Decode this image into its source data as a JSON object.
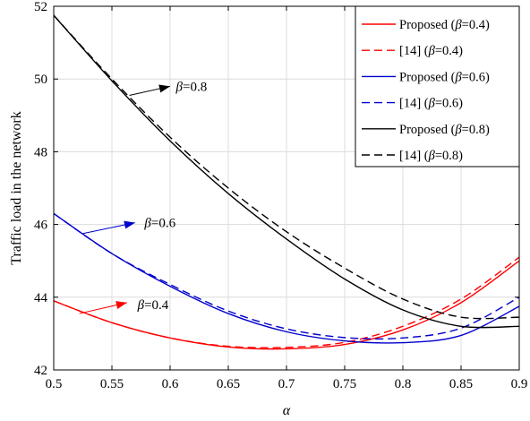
{
  "chart_data": {
    "type": "line",
    "title": "",
    "xlabel": "α",
    "ylabel": "Traffic load in the network",
    "xlim": [
      0.5,
      0.9
    ],
    "ylim": [
      42,
      52
    ],
    "grid": true,
    "legend_position": "top-right",
    "x_ticks": [
      "0.5",
      "0.55",
      "0.6",
      "0.65",
      "0.7",
      "0.75",
      "0.8",
      "0.85",
      "0.9"
    ],
    "y_ticks": [
      "42",
      "44",
      "46",
      "48",
      "50",
      "52"
    ],
    "x": [
      0.5,
      0.55,
      0.6,
      0.65,
      0.7,
      0.75,
      0.8,
      0.85,
      0.9
    ],
    "series": [
      {
        "name": "Proposed (β=0.4)",
        "color": "#ff0000",
        "dash": "solid",
        "values": [
          43.9,
          43.3,
          42.88,
          42.63,
          42.58,
          42.7,
          43.1,
          43.85,
          45.0
        ]
      },
      {
        "name": "[14] (β=0.4)",
        "color": "#ff0000",
        "dash": "dashed",
        "values": [
          43.9,
          43.3,
          42.88,
          42.65,
          42.62,
          42.76,
          43.2,
          43.95,
          45.1
        ]
      },
      {
        "name": "Proposed (β=0.6)",
        "color": "#0000cc",
        "dash": "solid",
        "values": [
          46.3,
          45.2,
          44.3,
          43.55,
          43.05,
          42.8,
          42.75,
          42.95,
          43.75
        ]
      },
      {
        "name": "[14] (β=0.6)",
        "color": "#0000cc",
        "dash": "dashed",
        "values": [
          46.3,
          45.2,
          44.35,
          43.62,
          43.13,
          42.89,
          42.88,
          43.15,
          44.0
        ]
      },
      {
        "name": "Proposed (β=0.8)",
        "color": "#000000",
        "dash": "solid",
        "values": [
          51.75,
          49.95,
          48.3,
          46.85,
          45.6,
          44.5,
          43.65,
          43.2,
          43.2
        ]
      },
      {
        "name": "[14] (β=0.8)",
        "color": "#000000",
        "dash": "dashed",
        "values": [
          51.75,
          50.0,
          48.4,
          47.0,
          45.8,
          44.8,
          43.95,
          43.45,
          43.45
        ]
      }
    ],
    "annotations": [
      {
        "label_prefix": "β",
        "label_value": "=0.8",
        "color": "#000000",
        "x_from": 0.565,
        "y_from": 49.55,
        "x_to": 0.6,
        "y_to": 49.8,
        "x_text": 0.605,
        "y_text": 49.8
      },
      {
        "label_prefix": "β",
        "label_value": "=0.6",
        "color": "#0000cc",
        "x_from": 0.525,
        "y_from": 45.75,
        "x_to": 0.57,
        "y_to": 46.05,
        "x_text": 0.578,
        "y_text": 46.05
      },
      {
        "label_prefix": "β",
        "label_value": "=0.4",
        "color": "#ff0000",
        "x_from": 0.522,
        "y_from": 43.55,
        "x_to": 0.563,
        "y_to": 43.85,
        "x_text": 0.572,
        "y_text": 43.8
      }
    ]
  }
}
